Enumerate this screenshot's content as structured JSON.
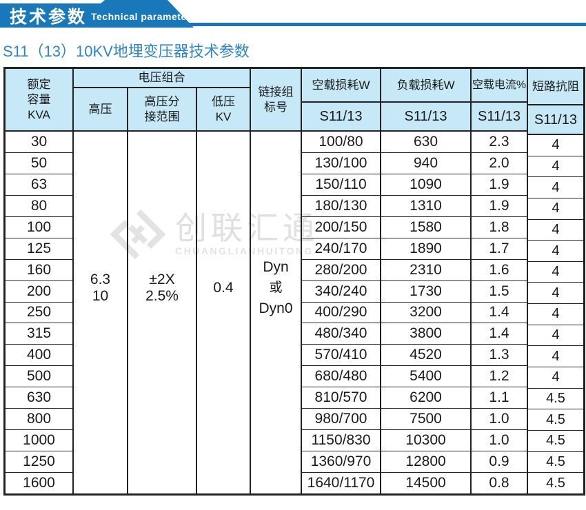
{
  "banner": {
    "title_cn": "技术参数",
    "title_en": "Technical parameter"
  },
  "page_title": "S11（13）10KV地埋变压器技术参数",
  "colors": {
    "banner_blue": "#1878ba",
    "strip_blue": "#1a73b4",
    "title_blue": "#2e86c8",
    "header_cell_bg": "#c7e8f7",
    "grid_border": "#222222",
    "watermark_gray": "#e0e0e0"
  },
  "watermark": {
    "logo_icon": "interlocked-diamond-logo",
    "cn": "创联汇通",
    "en": "CHUANGLIANHUITONG"
  },
  "table": {
    "headers": {
      "capacity_lines": [
        "额定",
        "容量",
        "KVA"
      ],
      "voltage_combo": "电压组合",
      "hv": "高压",
      "hv_tap_lines": [
        "高压分",
        "接范围"
      ],
      "lv_lines": [
        "低压",
        "KV"
      ],
      "vector_lines": [
        "链接组",
        "标号"
      ],
      "no_load_loss": "空载损耗W",
      "load_loss": "负载损耗W",
      "no_load_current": "空载电流%",
      "impedance": "短路抗阻",
      "model_no_load_loss": "S11/13",
      "model_load_loss": "S11/13",
      "model_no_load_current": "S11/13",
      "model_impedance": "S11/13"
    },
    "merged": {
      "hv_lines": [
        "6.3",
        "10"
      ],
      "tap_lines": [
        "±2X",
        "2.5%"
      ],
      "lv": "0.4",
      "vector_lines": [
        "Dyn",
        "或",
        "Dyn0"
      ]
    },
    "rows": [
      {
        "kva": "30",
        "no_load_loss": "100/80",
        "load_loss": "630",
        "no_load_current": "2.3",
        "impedance": "4"
      },
      {
        "kva": "50",
        "no_load_loss": "130/100",
        "load_loss": "940",
        "no_load_current": "2.0",
        "impedance": "4"
      },
      {
        "kva": "63",
        "no_load_loss": "150/110",
        "load_loss": "1090",
        "no_load_current": "1.9",
        "impedance": "4"
      },
      {
        "kva": "80",
        "no_load_loss": "180/130",
        "load_loss": "1310",
        "no_load_current": "1.9",
        "impedance": "4"
      },
      {
        "kva": "100",
        "no_load_loss": "200/150",
        "load_loss": "1580",
        "no_load_current": "1.8",
        "impedance": "4"
      },
      {
        "kva": "125",
        "no_load_loss": "240/170",
        "load_loss": "1890",
        "no_load_current": "1.7",
        "impedance": "4"
      },
      {
        "kva": "160",
        "no_load_loss": "280/200",
        "load_loss": "2310",
        "no_load_current": "1.6",
        "impedance": "4"
      },
      {
        "kva": "200",
        "no_load_loss": "340/240",
        "load_loss": "1730",
        "no_load_current": "1.5",
        "impedance": "4"
      },
      {
        "kva": "250",
        "no_load_loss": "400/290",
        "load_loss": "3200",
        "no_load_current": "1.4",
        "impedance": "4"
      },
      {
        "kva": "315",
        "no_load_loss": "480/340",
        "load_loss": "3800",
        "no_load_current": "1.4",
        "impedance": "4"
      },
      {
        "kva": "400",
        "no_load_loss": "570/410",
        "load_loss": "4520",
        "no_load_current": "1.3",
        "impedance": "4"
      },
      {
        "kva": "500",
        "no_load_loss": "680/480",
        "load_loss": "5400",
        "no_load_current": "1.2",
        "impedance": "4"
      },
      {
        "kva": "630",
        "no_load_loss": "810/570",
        "load_loss": "6200",
        "no_load_current": "1.1",
        "impedance": "4.5"
      },
      {
        "kva": "800",
        "no_load_loss": "980/700",
        "load_loss": "7500",
        "no_load_current": "1.0",
        "impedance": "4.5"
      },
      {
        "kva": "1000",
        "no_load_loss": "1150/830",
        "load_loss": "10300",
        "no_load_current": "1.0",
        "impedance": "4.5"
      },
      {
        "kva": "1250",
        "no_load_loss": "1360/970",
        "load_loss": "12800",
        "no_load_current": "0.9",
        "impedance": "4.5"
      },
      {
        "kva": "1600",
        "no_load_loss": "1640/1170",
        "load_loss": "14500",
        "no_load_current": "0.8",
        "impedance": "4.5"
      }
    ]
  }
}
